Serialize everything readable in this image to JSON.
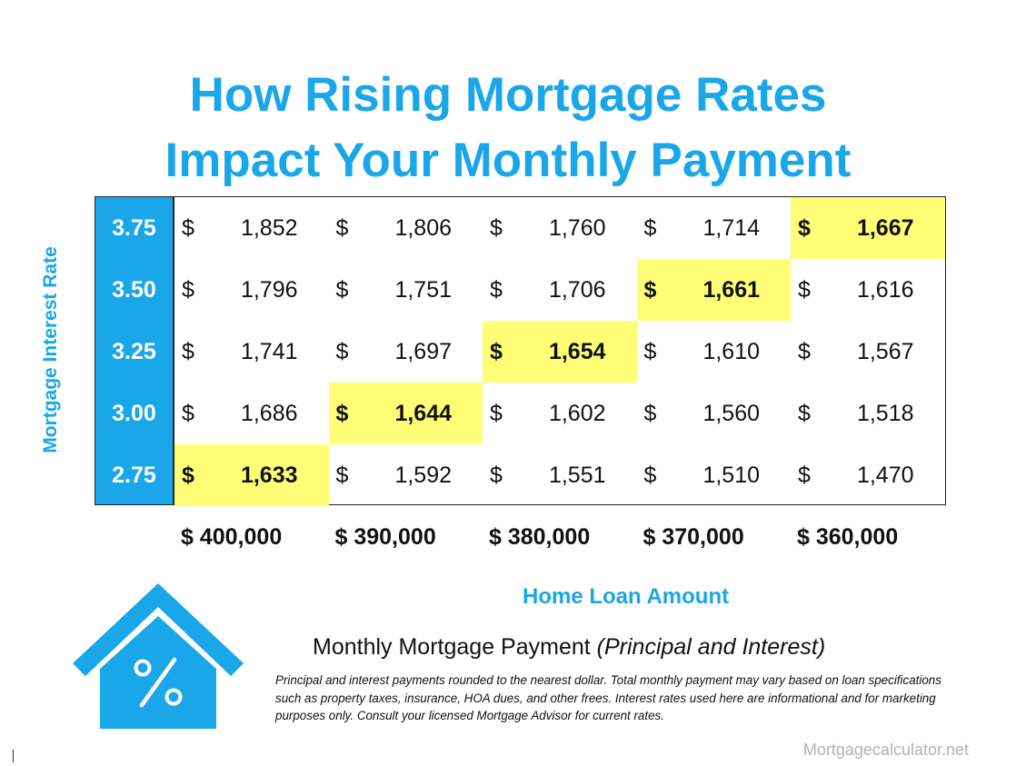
{
  "title": {
    "line1": "How Rising Mortgage Rates",
    "line2": "Impact Your Monthly Payment"
  },
  "chart_data": {
    "type": "table",
    "ylabel": "Mortgage Interest Rate",
    "xlabel": "Home Loan Amount",
    "rates": [
      "3.75",
      "3.50",
      "3.25",
      "3.00",
      "2.75"
    ],
    "loan_amounts": [
      "$ 400,000",
      "$ 390,000",
      "$ 380,000",
      "$ 370,000",
      "$ 360,000"
    ],
    "currency_symbol": "$",
    "payments": [
      [
        "1,852",
        "1,806",
        "1,760",
        "1,714",
        "1,667"
      ],
      [
        "1,796",
        "1,751",
        "1,706",
        "1,661",
        "1,616"
      ],
      [
        "1,741",
        "1,697",
        "1,654",
        "1,610",
        "1,567"
      ],
      [
        "1,686",
        "1,644",
        "1,602",
        "1,560",
        "1,518"
      ],
      [
        "1,633",
        "1,592",
        "1,551",
        "1,510",
        "1,470"
      ]
    ],
    "highlighted": [
      [
        0,
        4
      ],
      [
        1,
        3
      ],
      [
        2,
        2
      ],
      [
        3,
        1
      ],
      [
        4,
        0
      ]
    ],
    "highlight_color": "#ffff77",
    "rate_column_color": "#1aa7ea"
  },
  "caption": {
    "main": "Monthly Mortgage Payment ",
    "italic": "(Principal and Interest)"
  },
  "footnote": "Principal and interest payments rounded to the nearest dollar. Total monthly payment may vary based on loan specifications such as property taxes, insurance, HOA dues, and other frees. Interest rates used here are informational and for marketing purposes only. Consult your licensed Mortgage Advisor for current rates.",
  "brand": "Mortgagecalculator.net",
  "icons": {
    "house": "house-percent-icon"
  },
  "colors": {
    "accent": "#1aa7ea"
  }
}
